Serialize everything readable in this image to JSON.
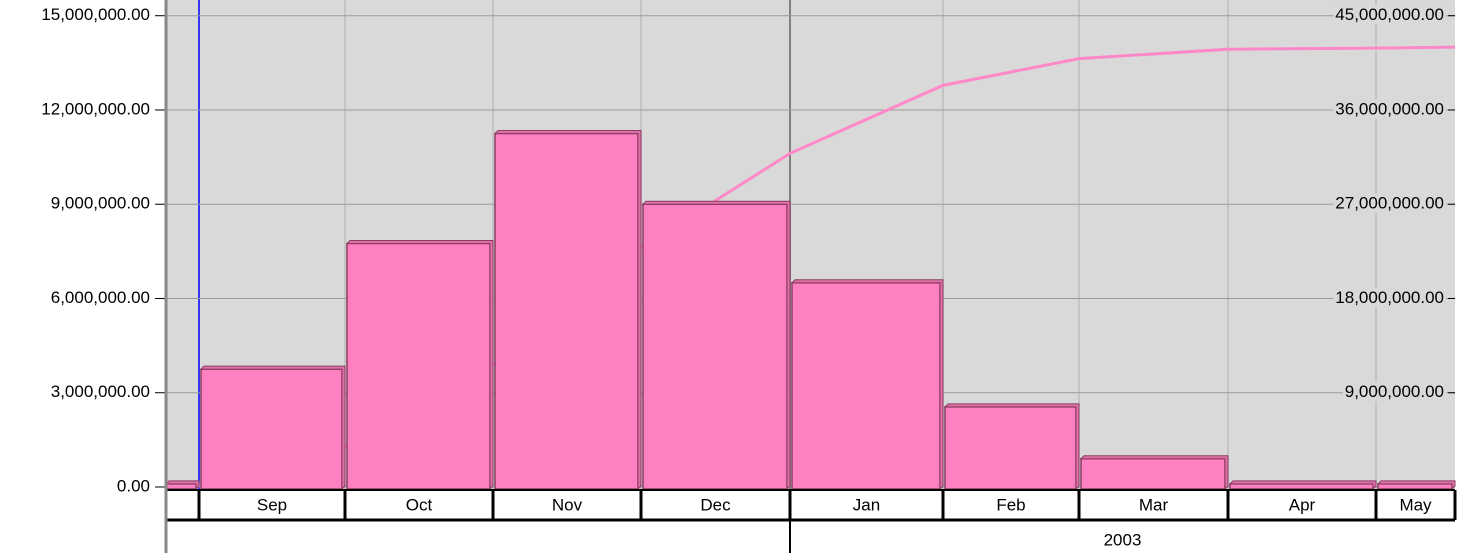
{
  "chart_data": {
    "type": "bar",
    "categories": [
      null,
      "Sep",
      "Oct",
      "Nov",
      "Dec",
      "Jan",
      "Feb",
      "Mar",
      "Apr",
      "May"
    ],
    "years": [
      null,
      "2003"
    ],
    "series": [
      {
        "type": "bar",
        "color": "#ff80c0",
        "values": [
          100000,
          3750000,
          7750000,
          11250000,
          9000000,
          6500000,
          2550000,
          900000,
          100000,
          100000
        ]
      },
      {
        "type": "line",
        "axis": "y2",
        "color": "#ff88c8",
        "values": [
          100000,
          3850000,
          11600000,
          22850000,
          31850000,
          38350000,
          40900000,
          41800000,
          41900000,
          42000000
        ]
      }
    ],
    "ylim": [
      0,
      15500000
    ],
    "yticks": [
      {
        "value": 0,
        "label": "0.00"
      },
      {
        "value": 3000000,
        "label": "3,000,000.00"
      },
      {
        "value": 6000000,
        "label": "6,000,000.00"
      },
      {
        "value": 9000000,
        "label": "9,000,000.00"
      },
      {
        "value": 12000000,
        "label": "12,000,000.00"
      },
      {
        "value": 15000000,
        "label": "15,000,000.00"
      }
    ],
    "y2lim": [
      0,
      46500000
    ],
    "y2ticks": [
      {
        "value": 9000000,
        "label": "9,000,000.00"
      },
      {
        "value": 18000000,
        "label": "18,000,000.00"
      },
      {
        "value": 27000000,
        "label": "27,000,000.00"
      },
      {
        "value": 36000000,
        "label": "36,000,000.00"
      },
      {
        "value": 45000000,
        "label": "45,000,000.00"
      }
    ],
    "grid": true
  }
}
